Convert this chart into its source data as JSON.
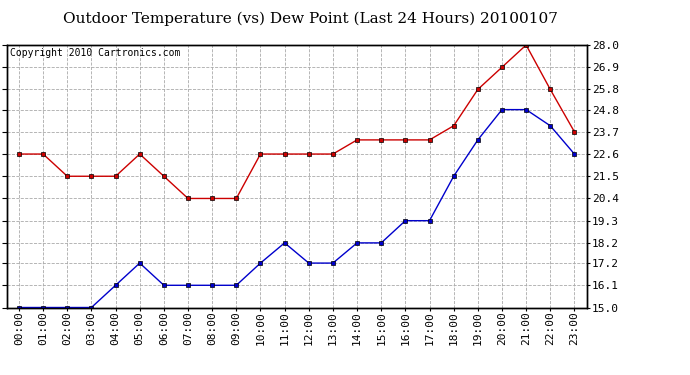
{
  "title": "Outdoor Temperature (vs) Dew Point (Last 24 Hours) 20100107",
  "copyright": "Copyright 2010 Cartronics.com",
  "hours": [
    "00:00",
    "01:00",
    "02:00",
    "03:00",
    "04:00",
    "05:00",
    "06:00",
    "07:00",
    "08:00",
    "09:00",
    "10:00",
    "11:00",
    "12:00",
    "13:00",
    "14:00",
    "15:00",
    "16:00",
    "17:00",
    "18:00",
    "19:00",
    "20:00",
    "21:00",
    "22:00",
    "23:00"
  ],
  "temp": [
    15.0,
    15.0,
    15.0,
    15.0,
    16.1,
    17.2,
    16.1,
    16.1,
    16.1,
    16.1,
    17.2,
    18.2,
    17.2,
    17.2,
    18.2,
    18.2,
    19.3,
    19.3,
    21.5,
    23.3,
    24.8,
    24.8,
    24.0,
    22.6
  ],
  "dew": [
    22.6,
    22.6,
    21.5,
    21.5,
    21.5,
    22.6,
    21.5,
    20.4,
    20.4,
    20.4,
    22.6,
    22.6,
    22.6,
    22.6,
    23.3,
    23.3,
    23.3,
    23.3,
    24.0,
    25.8,
    26.9,
    28.0,
    25.8,
    23.7
  ],
  "ylim": [
    15.0,
    28.0
  ],
  "yticks": [
    15.0,
    16.1,
    17.2,
    18.2,
    19.3,
    20.4,
    21.5,
    22.6,
    23.7,
    24.8,
    25.8,
    26.9,
    28.0
  ],
  "ytick_labels": [
    "15.0",
    "16.1",
    "17.2",
    "18.2",
    "19.3",
    "20.4",
    "21.5",
    "22.6",
    "23.7",
    "24.8",
    "25.8",
    "26.9",
    "28.0"
  ],
  "line_color_temp": "#0000cc",
  "line_color_dew": "#cc0000",
  "marker": "s",
  "marker_size": 3,
  "bg_color": "#ffffff",
  "grid_color": "#aaaaaa",
  "title_fontsize": 11,
  "tick_fontsize": 8,
  "copyright_fontsize": 7
}
